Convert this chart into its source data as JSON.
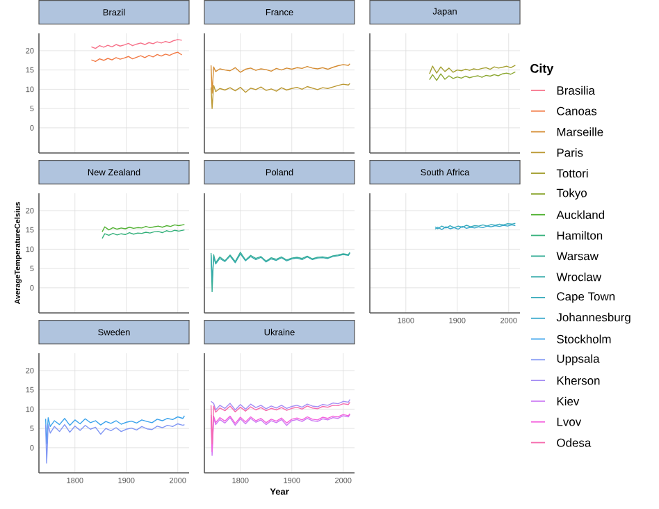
{
  "chart_data": [
    {
      "type": "line",
      "title": "Brazil",
      "legend": "right",
      "legend_title": "City",
      "xlim": [
        1730,
        2022
      ],
      "ylim": [
        -6.5,
        24.5
      ],
      "xticks": [
        1800,
        1900,
        2000
      ],
      "yticks": [
        0,
        5,
        10,
        15,
        20
      ],
      "grid": true,
      "tick_labels": "y",
      "series": [
        {
          "name": "Brasilia",
          "color": "#f77189",
          "x": [
            1832,
            1840,
            1848,
            1856,
            1864,
            1872,
            1880,
            1888,
            1896,
            1904,
            1912,
            1920,
            1928,
            1936,
            1944,
            1952,
            1960,
            1968,
            1976,
            1984,
            1992,
            2000,
            2008
          ],
          "values": [
            21,
            20.6,
            21.3,
            20.9,
            21.4,
            21,
            21.6,
            21.2,
            21.5,
            21.9,
            21.3,
            21.7,
            22,
            21.6,
            22.1,
            21.8,
            22.3,
            22,
            22.4,
            22.1,
            22.6,
            22.9,
            22.7
          ]
        },
        {
          "name": "Canoas",
          "color": "#f27a45",
          "x": [
            1832,
            1840,
            1848,
            1856,
            1864,
            1872,
            1880,
            1888,
            1896,
            1904,
            1912,
            1920,
            1928,
            1936,
            1944,
            1952,
            1960,
            1968,
            1976,
            1984,
            1992,
            2000,
            2008
          ],
          "values": [
            17.6,
            17.2,
            17.9,
            17.5,
            18,
            17.6,
            18.2,
            17.8,
            18.1,
            18.5,
            17.9,
            18.3,
            18.7,
            18.2,
            18.8,
            18.4,
            19,
            18.6,
            19.1,
            18.8,
            19.3,
            19.6,
            18.9
          ]
        }
      ]
    },
    {
      "type": "line",
      "title": "France",
      "legend": "right",
      "xlim": [
        1730,
        2022
      ],
      "ylim": [
        -6.5,
        24.5
      ],
      "xticks": [
        1800,
        1900,
        2000
      ],
      "yticks": [
        0,
        5,
        10,
        15,
        20
      ],
      "grid": true,
      "tick_labels": false,
      "series": [
        {
          "name": "Marseille",
          "color": "#d58c32",
          "x": [
            1743,
            1745,
            1748,
            1752,
            1760,
            1770,
            1780,
            1790,
            1800,
            1810,
            1820,
            1830,
            1840,
            1850,
            1860,
            1870,
            1880,
            1890,
            1900,
            1910,
            1920,
            1930,
            1940,
            1950,
            1960,
            1970,
            1980,
            1990,
            2000,
            2010,
            2013
          ],
          "values": [
            16.2,
            9,
            15.8,
            14.6,
            15.3,
            15,
            14.8,
            15.6,
            14.4,
            15.2,
            15.5,
            14.9,
            15.3,
            15.1,
            14.7,
            15.4,
            15,
            15.5,
            15.2,
            15.6,
            15.4,
            15.9,
            15.5,
            15.3,
            15.6,
            15.2,
            15.7,
            16.1,
            16.4,
            16.2,
            16.6
          ]
        },
        {
          "name": "Paris",
          "color": "#bb9832",
          "x": [
            1743,
            1745,
            1748,
            1752,
            1760,
            1770,
            1780,
            1790,
            1800,
            1810,
            1820,
            1830,
            1840,
            1850,
            1860,
            1870,
            1880,
            1890,
            1900,
            1910,
            1920,
            1930,
            1940,
            1950,
            1960,
            1970,
            1980,
            1990,
            2000,
            2010,
            2013
          ],
          "values": [
            10.5,
            5,
            11,
            9.4,
            10.2,
            9.8,
            10.4,
            9.6,
            10.5,
            9.2,
            10.3,
            9.9,
            10.6,
            9.7,
            10.1,
            9.5,
            10.4,
            9.8,
            10.2,
            10.5,
            10,
            10.7,
            10.3,
            9.9,
            10.4,
            10.2,
            10.6,
            11,
            11.3,
            11.1,
            11.5
          ]
        }
      ]
    },
    {
      "type": "line",
      "title": "Japan",
      "legend": "right",
      "xlim": [
        1730,
        2022
      ],
      "ylim": [
        -6.5,
        24.5
      ],
      "xticks": [
        1800,
        1900,
        2000
      ],
      "yticks": [
        0,
        5,
        10,
        15,
        20
      ],
      "grid": true,
      "tick_labels": false,
      "series": [
        {
          "name": "Tottori",
          "color": "#a4a031",
          "x": [
            1846,
            1852,
            1860,
            1868,
            1876,
            1884,
            1892,
            1900,
            1908,
            1916,
            1924,
            1932,
            1940,
            1948,
            1956,
            1964,
            1972,
            1980,
            1988,
            1996,
            2004,
            2013
          ],
          "values": [
            14,
            16,
            14.2,
            15.8,
            14.6,
            15.5,
            14.4,
            15,
            14.8,
            15.2,
            14.9,
            15.3,
            15.1,
            15.4,
            15.6,
            15.2,
            15.8,
            15.5,
            15.7,
            16,
            15.6,
            16.2
          ]
        },
        {
          "name": "Tokyo",
          "color": "#8ba731",
          "x": [
            1846,
            1852,
            1860,
            1868,
            1876,
            1884,
            1892,
            1900,
            1908,
            1916,
            1924,
            1932,
            1940,
            1948,
            1956,
            1964,
            1972,
            1980,
            1988,
            1996,
            2004,
            2013
          ],
          "values": [
            12.5,
            13.8,
            12.3,
            14,
            12.6,
            13.5,
            12.8,
            13.2,
            12.9,
            13.4,
            13,
            13.3,
            13.5,
            13.1,
            13.6,
            13.4,
            13.8,
            13.5,
            14,
            14.2,
            13.9,
            14.5
          ]
        }
      ]
    },
    {
      "type": "line",
      "title": "New Zealand",
      "ylabel": "AverageTemperatureCelsius",
      "legend": "right",
      "xlim": [
        1730,
        2022
      ],
      "ylim": [
        -6.5,
        24.5
      ],
      "xticks": [
        1800,
        1900,
        2000
      ],
      "yticks": [
        0,
        5,
        10,
        15,
        20
      ],
      "grid": true,
      "tick_labels": "y",
      "series": [
        {
          "name": "Auckland",
          "color": "#50b131",
          "x": [
            1853,
            1858,
            1866,
            1874,
            1882,
            1890,
            1898,
            1906,
            1914,
            1922,
            1930,
            1938,
            1946,
            1954,
            1962,
            1970,
            1978,
            1986,
            1994,
            2002,
            2013
          ],
          "values": [
            14.5,
            15.8,
            15,
            15.6,
            15.2,
            15.5,
            15.3,
            15.7,
            15.4,
            15.6,
            15.5,
            15.9,
            15.6,
            15.8,
            16,
            15.7,
            16.1,
            15.9,
            16.3,
            16.1,
            16.4
          ]
        },
        {
          "name": "Hamilton",
          "color": "#33b07a",
          "x": [
            1853,
            1858,
            1866,
            1874,
            1882,
            1890,
            1898,
            1906,
            1914,
            1922,
            1930,
            1938,
            1946,
            1954,
            1962,
            1970,
            1978,
            1986,
            1994,
            2002,
            2013
          ],
          "values": [
            12.8,
            14,
            13.6,
            14.1,
            13.7,
            14,
            13.8,
            14.3,
            13.9,
            14.2,
            14.1,
            14.4,
            14.2,
            14.5,
            14.6,
            14.3,
            14.8,
            14.5,
            14.9,
            14.7,
            15
          ]
        }
      ]
    },
    {
      "type": "line",
      "title": "Poland",
      "legend": "right",
      "xlim": [
        1730,
        2022
      ],
      "ylim": [
        -6.5,
        24.5
      ],
      "xticks": [
        1800,
        1900,
        2000
      ],
      "yticks": [
        0,
        5,
        10,
        15,
        20
      ],
      "grid": true,
      "tick_labels": false,
      "series": [
        {
          "name": "Warsaw",
          "color": "#35ad96",
          "x": [
            1743,
            1745,
            1748,
            1752,
            1760,
            1770,
            1780,
            1790,
            1800,
            1810,
            1820,
            1830,
            1840,
            1850,
            1860,
            1870,
            1880,
            1890,
            1900,
            1910,
            1920,
            1930,
            1940,
            1950,
            1960,
            1970,
            1980,
            1990,
            2000,
            2010,
            2013
          ],
          "values": [
            9,
            -1,
            8.6,
            6.5,
            8,
            7,
            8.5,
            6.8,
            9.2,
            7.2,
            8.4,
            7.6,
            8.1,
            6.9,
            7.8,
            7.4,
            8,
            7.2,
            7.7,
            7.9,
            7.6,
            8.2,
            7.5,
            7.9,
            8,
            7.8,
            8.3,
            8.5,
            8.8,
            8.6,
            9.2
          ]
        },
        {
          "name": "Wroclaw",
          "color": "#36abaa",
          "x": [
            1743,
            1745,
            1748,
            1752,
            1760,
            1770,
            1780,
            1790,
            1800,
            1810,
            1820,
            1830,
            1840,
            1850,
            1860,
            1870,
            1880,
            1890,
            1900,
            1910,
            1920,
            1930,
            1940,
            1950,
            1960,
            1970,
            1980,
            1990,
            2000,
            2010,
            2013
          ],
          "values": [
            8.5,
            2,
            8,
            6.2,
            7.6,
            6.8,
            8.2,
            6.5,
            8.8,
            7,
            8.1,
            7.3,
            7.9,
            6.7,
            7.5,
            7.1,
            7.8,
            7,
            7.5,
            7.7,
            7.3,
            8,
            7.3,
            7.7,
            7.8,
            7.6,
            8.1,
            8.3,
            8.6,
            8.4,
            9
          ]
        }
      ]
    },
    {
      "type": "line",
      "title": "South Africa",
      "legend": "right",
      "xlim": [
        1730,
        2022
      ],
      "ylim": [
        -6.5,
        24.5
      ],
      "xticks": [
        1800,
        1900,
        2000
      ],
      "yticks": [
        0,
        5,
        10,
        15,
        20
      ],
      "grid": true,
      "tick_labels": "x",
      "series": [
        {
          "name": "Cape Town",
          "color": "#37aabb",
          "x": [
            1857,
            1862,
            1870,
            1878,
            1886,
            1894,
            1902,
            1910,
            1918,
            1926,
            1934,
            1942,
            1950,
            1958,
            1966,
            1974,
            1982,
            1990,
            1998,
            2006,
            2013
          ],
          "values": [
            15.8,
            15.3,
            16,
            15.5,
            16.1,
            15.6,
            16,
            15.7,
            16.2,
            15.8,
            16.1,
            16,
            16.3,
            16,
            16.4,
            16.2,
            16.5,
            16.3,
            16.6,
            16.5,
            16.7
          ]
        },
        {
          "name": "Johannesburg",
          "color": "#38a8cc",
          "x": [
            1857,
            1862,
            1870,
            1878,
            1886,
            1894,
            1902,
            1910,
            1918,
            1926,
            1934,
            1942,
            1950,
            1958,
            1966,
            1974,
            1982,
            1990,
            1998,
            2006,
            2013
          ],
          "values": [
            15.2,
            15.7,
            15.1,
            15.8,
            15.3,
            15.6,
            15.2,
            15.9,
            15.4,
            15.7,
            15.5,
            15.8,
            15.6,
            16,
            15.8,
            16.1,
            15.9,
            16.2,
            16,
            16.3,
            16.1
          ]
        }
      ]
    },
    {
      "type": "line",
      "title": "Sweden",
      "legend": "right",
      "xlim": [
        1730,
        2022
      ],
      "ylim": [
        -6.5,
        24.5
      ],
      "xticks": [
        1800,
        1900,
        2000
      ],
      "yticks": [
        0,
        5,
        10,
        15,
        20
      ],
      "grid": true,
      "series": [
        {
          "name": "Stockholm",
          "color": "#3ba3ec",
          "x": [
            1743,
            1745,
            1748,
            1752,
            1760,
            1770,
            1780,
            1790,
            1800,
            1810,
            1820,
            1830,
            1840,
            1850,
            1860,
            1870,
            1880,
            1890,
            1900,
            1910,
            1920,
            1930,
            1940,
            1950,
            1960,
            1970,
            1980,
            1990,
            2000,
            2010,
            2013
          ],
          "values": [
            7.5,
            1,
            7.8,
            5.5,
            7,
            6,
            7.6,
            5.8,
            7.2,
            6.2,
            7.5,
            6.5,
            7,
            5.9,
            6.8,
            6.3,
            7,
            6.1,
            6.6,
            6.9,
            6.4,
            7.2,
            6.8,
            6.5,
            7.4,
            7,
            7.6,
            7.3,
            8,
            7.6,
            8.3
          ]
        },
        {
          "name": "Uppsala",
          "color": "#8197f4",
          "x": [
            1743,
            1745,
            1748,
            1752,
            1760,
            1770,
            1780,
            1790,
            1800,
            1810,
            1820,
            1830,
            1840,
            1850,
            1860,
            1870,
            1880,
            1890,
            1900,
            1910,
            1920,
            1930,
            1940,
            1950,
            1960,
            1970,
            1980,
            1990,
            2000,
            2010,
            2013
          ],
          "values": [
            6,
            -4,
            6,
            3.8,
            5.5,
            4.2,
            6,
            4,
            5.6,
            4.5,
            5.8,
            4.8,
            5.3,
            3.5,
            5,
            4.4,
            5.2,
            4.2,
            4.8,
            5.1,
            4.6,
            5.5,
            4.9,
            4.7,
            5.6,
            5.2,
            5.8,
            5.5,
            6.2,
            5.8,
            6
          ]
        }
      ]
    },
    {
      "type": "line",
      "title": "Ukraine",
      "xlabel": "Year",
      "legend": "right",
      "xlim": [
        1730,
        2022
      ],
      "ylim": [
        -6.5,
        24.5
      ],
      "xticks": [
        1800,
        1900,
        2000
      ],
      "yticks": [
        0,
        5,
        10,
        15,
        20
      ],
      "grid": true,
      "tick_labels": "x",
      "series": [
        {
          "name": "Kherson",
          "color": "#a48cf4",
          "x": [
            1743,
            1748,
            1752,
            1760,
            1770,
            1780,
            1790,
            1800,
            1810,
            1820,
            1830,
            1840,
            1850,
            1860,
            1870,
            1880,
            1890,
            1900,
            1910,
            1920,
            1930,
            1940,
            1950,
            1960,
            1970,
            1980,
            1990,
            2000,
            2010,
            2013
          ],
          "values": [
            12,
            11.5,
            9.8,
            11,
            10.2,
            11.5,
            9.8,
            11.2,
            10,
            11.3,
            10.4,
            11,
            10.1,
            10.8,
            10.3,
            11,
            10.2,
            10.7,
            11,
            10.5,
            11.3,
            10.8,
            10.6,
            11.2,
            11,
            11.6,
            11.4,
            12,
            11.8,
            12.5
          ]
        },
        {
          "name": "Kiev",
          "color": "#cc7af4",
          "x": [
            1743,
            1745,
            1748,
            1752,
            1760,
            1770,
            1780,
            1790,
            1800,
            1810,
            1820,
            1830,
            1840,
            1850,
            1860,
            1870,
            1880,
            1890,
            1900,
            1910,
            1920,
            1930,
            1940,
            1950,
            1960,
            1970,
            1980,
            1990,
            2000,
            2010,
            2013
          ],
          "values": [
            8,
            -2,
            7.8,
            6,
            7.3,
            6.4,
            7.8,
            5.8,
            7.5,
            6.2,
            7.6,
            6.6,
            7.2,
            6,
            7,
            6.5,
            7.3,
            5.8,
            7,
            7.3,
            6.8,
            7.6,
            7,
            6.8,
            7.5,
            7.2,
            7.8,
            7.6,
            8.3,
            8,
            8.6
          ]
        },
        {
          "name": "Lvov",
          "color": "#f461dd",
          "x": [
            1743,
            1745,
            1748,
            1752,
            1760,
            1770,
            1780,
            1790,
            1800,
            1810,
            1820,
            1830,
            1840,
            1850,
            1860,
            1870,
            1880,
            1890,
            1900,
            1910,
            1920,
            1930,
            1940,
            1950,
            1960,
            1970,
            1980,
            1990,
            2000,
            2010,
            2013
          ],
          "values": [
            8.5,
            -1,
            8.2,
            6.5,
            7.8,
            6.9,
            8.2,
            6.3,
            7.9,
            6.7,
            8,
            7,
            7.6,
            6.5,
            7.4,
            6.9,
            7.7,
            6.4,
            7.4,
            7.7,
            7.2,
            8,
            7.4,
            7.2,
            7.9,
            7.6,
            8.2,
            8,
            8.6,
            8.3,
            8.8
          ]
        },
        {
          "name": "Odesa",
          "color": "#f66bad",
          "x": [
            1743,
            1745,
            1748,
            1752,
            1760,
            1770,
            1780,
            1790,
            1800,
            1810,
            1820,
            1830,
            1840,
            1850,
            1860,
            1870,
            1880,
            1890,
            1900,
            1910,
            1920,
            1930,
            1940,
            1950,
            1960,
            1970,
            1980,
            1990,
            2000,
            2010,
            2013
          ],
          "values": [
            11,
            1,
            10.8,
            9.2,
            10.3,
            9.6,
            10.8,
            9.3,
            10.5,
            9.5,
            10.6,
            9.8,
            10.4,
            9.6,
            10.2,
            9.8,
            10.4,
            9.7,
            10.2,
            10.5,
            10,
            10.8,
            10.3,
            10.1,
            10.7,
            10.5,
            11,
            10.9,
            11.4,
            11.2,
            11.8
          ]
        }
      ]
    }
  ]
}
